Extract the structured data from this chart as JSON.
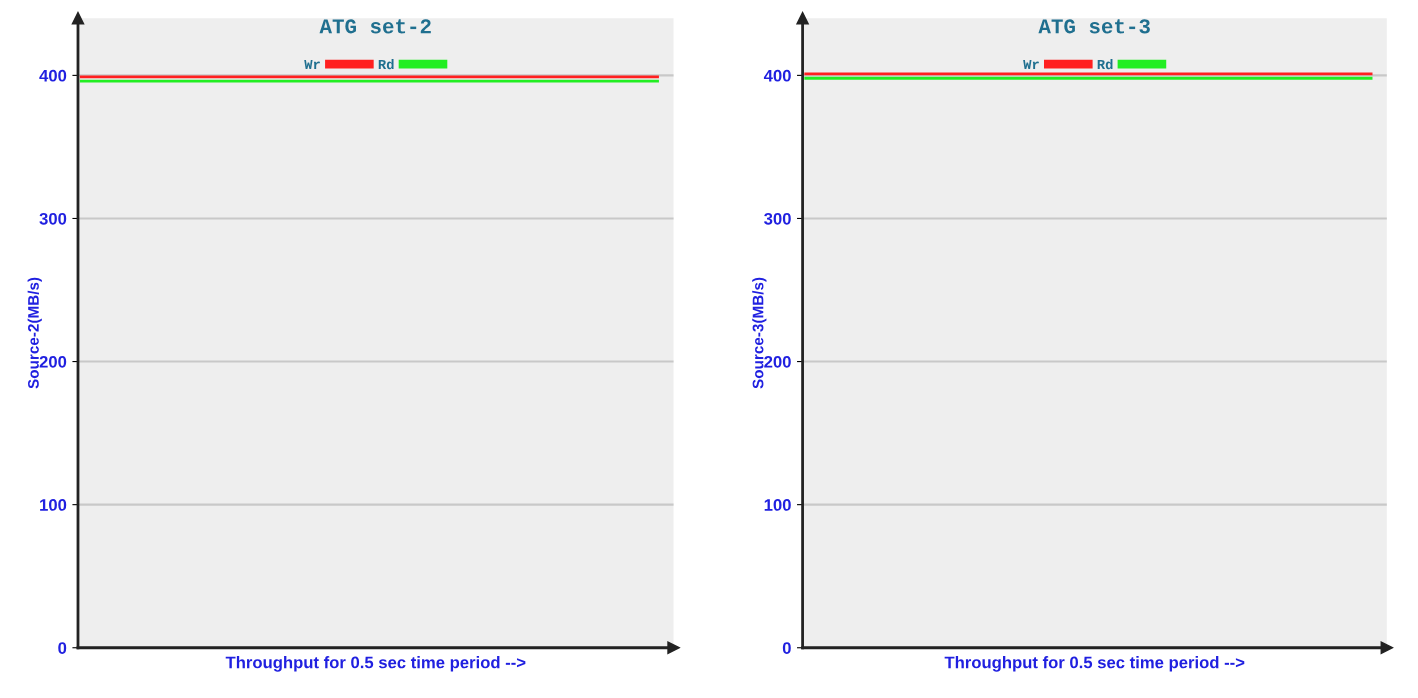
{
  "chart_data": [
    {
      "type": "line",
      "title": "ATG set-2",
      "ylabel": "Source-2(MB/s)",
      "xlabel": "Throughput for 0.5 sec time period -->",
      "categories": [
        null,
        null,
        null,
        null,
        null,
        null,
        null,
        null,
        null,
        null
      ],
      "series": [
        {
          "name": "Wr",
          "color": "#ff2020",
          "values": [
            399,
            399,
            399,
            399,
            399,
            399,
            399,
            399,
            399,
            399
          ]
        },
        {
          "name": "Rd",
          "color": "#22ee22",
          "values": [
            396,
            396,
            396,
            396,
            396,
            396,
            396,
            396,
            396,
            396
          ]
        }
      ],
      "ylim": [
        0,
        440
      ],
      "yticks": [
        0,
        100,
        200,
        300,
        400
      ],
      "grid": "y",
      "legend": "top",
      "tick_labels": "y",
      "marker": "none",
      "line_style": "solid"
    },
    {
      "type": "line",
      "title": "ATG set-3",
      "ylabel": "Source-3(MB/s)",
      "xlabel": "Throughput for 0.5 sec time period -->",
      "categories": [
        null,
        null,
        null,
        null,
        null,
        null,
        null,
        null,
        null,
        null
      ],
      "series": [
        {
          "name": "Wr",
          "color": "#ff2020",
          "values": [
            401,
            401,
            401,
            401,
            401,
            401,
            401,
            401,
            401,
            401
          ]
        },
        {
          "name": "Rd",
          "color": "#22ee22",
          "values": [
            398,
            398,
            398,
            398,
            398,
            398,
            398,
            398,
            398,
            398
          ]
        }
      ],
      "ylim": [
        0,
        440
      ],
      "yticks": [
        0,
        100,
        200,
        300,
        400
      ],
      "grid": "y",
      "legend": "top",
      "tick_labels": "y",
      "marker": "none",
      "line_style": "solid"
    }
  ]
}
